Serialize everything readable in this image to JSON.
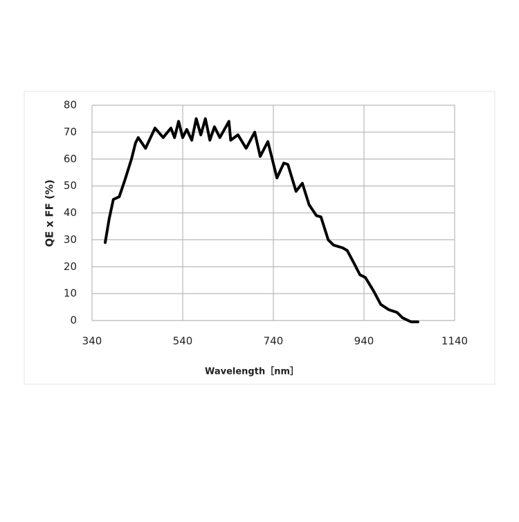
{
  "chart_data": {
    "type": "line",
    "xlabel": "Wavelength［nm］",
    "ylabel": "QE x FF (%)",
    "x": [
      369,
      378,
      387,
      400,
      412,
      427,
      436,
      442,
      458,
      479,
      497,
      514,
      522,
      531,
      540,
      549,
      560,
      570,
      580,
      590,
      600,
      610,
      622,
      642,
      646,
      662,
      680,
      699,
      711,
      728,
      748,
      763,
      772,
      790,
      804,
      819,
      835,
      845,
      861,
      873,
      893,
      903,
      919,
      931,
      943,
      961,
      977,
      995,
      1013,
      1025,
      1044,
      1059
    ],
    "series": [
      {
        "color": "#000000",
        "values": [
          29,
          38,
          45,
          46,
          52,
          60,
          66,
          68,
          64,
          71.5,
          68,
          71.5,
          68,
          74,
          68,
          71,
          67,
          75,
          69,
          75,
          67,
          72,
          68,
          74,
          67,
          69,
          64,
          70,
          61,
          66.5,
          53,
          58.5,
          58,
          48,
          51,
          43,
          39,
          38.5,
          30,
          28,
          27,
          26,
          21,
          17,
          16,
          11,
          6,
          4,
          3,
          1,
          -0.5,
          -0.5
        ]
      }
    ],
    "xlim": [
      340,
      1140
    ],
    "xticks": [
      340,
      540,
      740,
      940,
      1140
    ],
    "ylim": [
      0,
      80
    ],
    "yticks": [
      0,
      10,
      20,
      30,
      40,
      50,
      60,
      70,
      80
    ],
    "grid": true
  }
}
